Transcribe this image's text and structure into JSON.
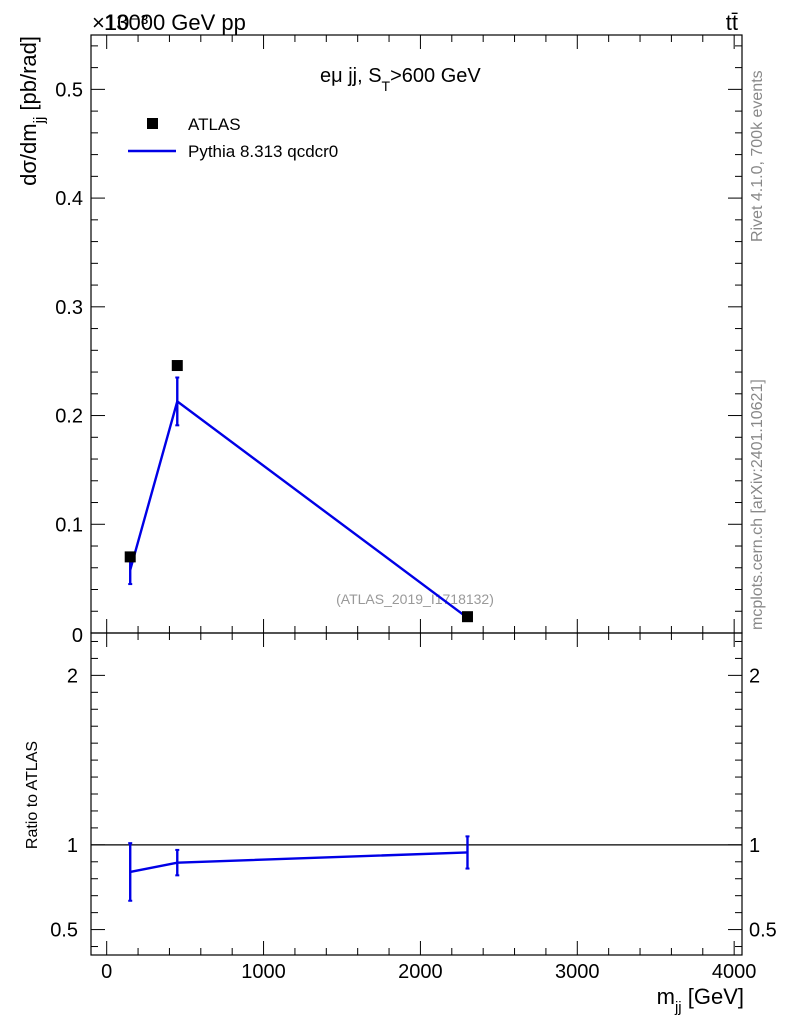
{
  "header": {
    "energy_label": "13000 GeV pp",
    "exponent_label": "×10⁻³",
    "process_label": "tt̄"
  },
  "side_text": {
    "rivet": "Rivet 4.1.0,  700k events",
    "mcplots": "mcplots.cern.ch [arXiv:2401.10621]"
  },
  "colors": {
    "atlas": "#000000",
    "pythia": "#0000e6",
    "side_text": "#888888"
  },
  "chart_data": [
    {
      "type": "scatter",
      "title": "eμ jj, S_T>600 GeV",
      "title_main": "eμ jj, S",
      "title_sub": "T",
      "title_rest": ">600 GeV",
      "ylabel": "dσ/dm_jj [pb/rad]",
      "ylabel_main": "dσ/dm",
      "ylabel_sub": "jj",
      "ylabel_rest": " [pb/rad]",
      "y_scale_note": "×10^-3",
      "xlim": [
        -100,
        4050
      ],
      "ylim": [
        0,
        0.55
      ],
      "y_ticks": [
        "0.1",
        "0.2",
        "0.3",
        "0.4",
        "0.5"
      ],
      "y_tick_values": [
        0.1,
        0.2,
        0.3,
        0.4,
        0.5
      ],
      "y_zero_label": "0",
      "watermark": "(ATLAS_2019_I1718132)",
      "legend_position": "top-left",
      "series": [
        {
          "name": "ATLAS",
          "style": "markers",
          "x": [
            150,
            450,
            2300
          ],
          "y": [
            0.07,
            0.246,
            0.015
          ]
        },
        {
          "name": "Pythia 8.313 qcdcr0",
          "style": "line",
          "x": [
            150,
            450,
            2300
          ],
          "y": [
            0.058,
            0.213,
            0.014
          ],
          "err": [
            0.013,
            0.022,
            0.002
          ]
        }
      ]
    },
    {
      "type": "line",
      "ylabel": "Ratio to ATLAS",
      "xlabel": "m_jj [GeV]",
      "xlabel_main": "m",
      "xlabel_sub": "jj",
      "xlabel_rest": " [GeV]",
      "xlim": [
        -100,
        4050
      ],
      "ylim": [
        0.35,
        2.25
      ],
      "x_ticks": [
        "0",
        "1000",
        "2000",
        "3000",
        "4000"
      ],
      "x_tick_values": [
        0,
        1000,
        2000,
        3000,
        4000
      ],
      "y_ticks": [
        "0.5",
        "1",
        "2"
      ],
      "y_tick_values": [
        0.5,
        1,
        2
      ],
      "reference_line": 1,
      "series": [
        {
          "name": "Pythia 8.313 qcdcr0",
          "x": [
            150,
            450,
            2300
          ],
          "y": [
            0.84,
            0.895,
            0.955
          ],
          "err": [
            0.17,
            0.075,
            0.095
          ]
        }
      ]
    }
  ]
}
